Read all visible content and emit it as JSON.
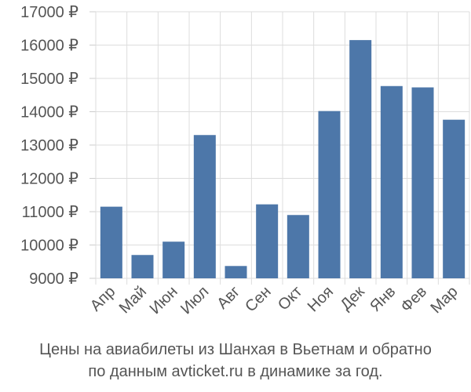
{
  "chart_data": {
    "type": "bar",
    "categories": [
      "Апр",
      "Май",
      "Июн",
      "Июл",
      "Авг",
      "Сен",
      "Окт",
      "Ноя",
      "Дек",
      "Янв",
      "Фев",
      "Мар"
    ],
    "values": [
      11150,
      9700,
      10100,
      13300,
      9370,
      11220,
      10900,
      14020,
      16150,
      14770,
      14730,
      13760
    ],
    "ylim": [
      9000,
      17000
    ],
    "yticks": [
      "9000 ₽",
      "10000 ₽",
      "11000 ₽",
      "12000 ₽",
      "13000 ₽",
      "14000 ₽",
      "15000 ₽",
      "16000 ₽",
      "17000 ₽"
    ],
    "ytick_values": [
      9000,
      10000,
      11000,
      12000,
      13000,
      14000,
      15000,
      16000,
      17000
    ],
    "bar_color": "#4d77a9",
    "grid": true
  },
  "caption": {
    "line1": "Цены на авиабилеты из Шанхая в Вьетнам и обратно",
    "line2": "по данным avticket.ru в динамике за год."
  }
}
